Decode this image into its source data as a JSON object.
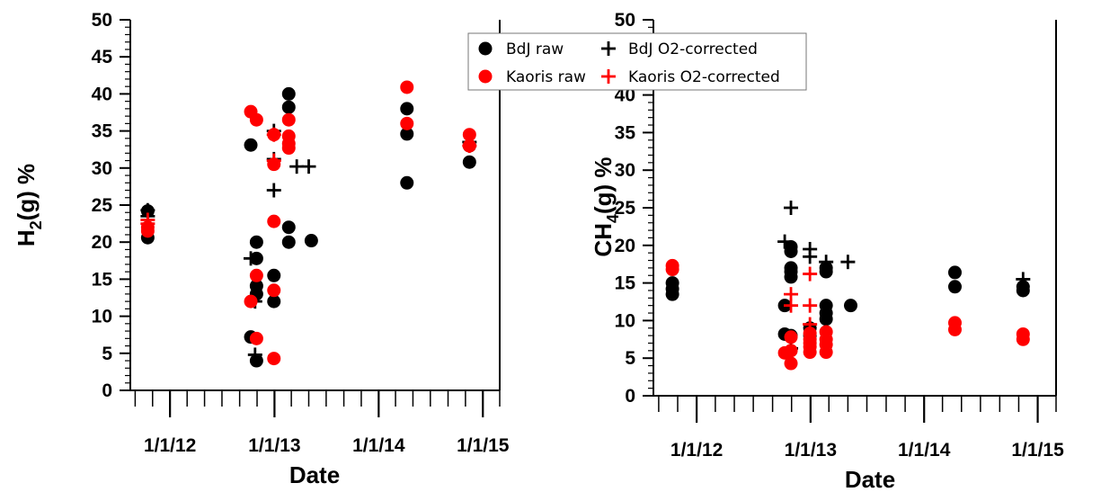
{
  "legend": {
    "items": [
      {
        "label": "BdJ raw",
        "marker": "circle",
        "color": "#000000"
      },
      {
        "label": "BdJ O2-corrected",
        "marker": "plus",
        "color": "#000000"
      },
      {
        "label": "Kaoris raw",
        "marker": "circle",
        "color": "#ff0000"
      },
      {
        "label": "Kaoris O2-corrected",
        "marker": "plus",
        "color": "#ff0000"
      }
    ]
  },
  "chart_data": [
    {
      "type": "scatter",
      "id": "h2",
      "ylabel": "H₂(g) %",
      "ylabel_parts": {
        "base": "H",
        "sub": "2",
        "rest": "(g) %"
      },
      "xlabel": "Date",
      "ylim": [
        0,
        50
      ],
      "yticks": [
        0,
        5,
        10,
        15,
        20,
        25,
        30,
        35,
        40,
        45,
        50
      ],
      "xlim": [
        "2011-08-15",
        "2015-03-01"
      ],
      "xticks": [
        {
          "date": "2012-01-01",
          "label": "1/1/12"
        },
        {
          "date": "2013-01-01",
          "label": "1/1/13"
        },
        {
          "date": "2014-01-01",
          "label": "1/1/14"
        },
        {
          "date": "2015-01-01",
          "label": "1/1/15"
        }
      ],
      "series": [
        {
          "name": "BdJ raw",
          "marker": "circle",
          "color": "#000000",
          "points": [
            {
              "x": "2011-10-15",
              "y": 20.6
            },
            {
              "x": "2011-10-15",
              "y": 24.2
            },
            {
              "x": "2012-10-10",
              "y": 33.1
            },
            {
              "x": "2012-10-10",
              "y": 7.2
            },
            {
              "x": "2012-10-30",
              "y": 20.0
            },
            {
              "x": "2012-10-30",
              "y": 17.8
            },
            {
              "x": "2012-10-30",
              "y": 14.1
            },
            {
              "x": "2012-10-30",
              "y": 13.0
            },
            {
              "x": "2012-10-30",
              "y": 4.0
            },
            {
              "x": "2012-12-30",
              "y": 15.5
            },
            {
              "x": "2012-12-30",
              "y": 12.0
            },
            {
              "x": "2013-02-20",
              "y": 40.0
            },
            {
              "x": "2013-02-20",
              "y": 38.2
            },
            {
              "x": "2013-02-20",
              "y": 22.0
            },
            {
              "x": "2013-02-20",
              "y": 20.0
            },
            {
              "x": "2013-05-10",
              "y": 20.2
            },
            {
              "x": "2014-04-10",
              "y": 38.0
            },
            {
              "x": "2014-04-10",
              "y": 34.6
            },
            {
              "x": "2014-04-10",
              "y": 28.0
            },
            {
              "x": "2014-11-15",
              "y": 33.0
            },
            {
              "x": "2014-11-15",
              "y": 30.8
            }
          ]
        },
        {
          "name": "BdJ O2-corrected",
          "marker": "plus",
          "color": "#000000",
          "points": [
            {
              "x": "2011-10-15",
              "y": 23.5
            },
            {
              "x": "2011-10-15",
              "y": 24.3
            },
            {
              "x": "2012-10-10",
              "y": 17.8
            },
            {
              "x": "2012-10-25",
              "y": 12.0
            },
            {
              "x": "2012-10-25",
              "y": 4.8
            },
            {
              "x": "2012-12-30",
              "y": 35.0
            },
            {
              "x": "2012-12-30",
              "y": 31.2
            },
            {
              "x": "2012-12-30",
              "y": 27.0
            },
            {
              "x": "2013-03-20",
              "y": 30.2
            },
            {
              "x": "2013-05-01",
              "y": 30.2
            },
            {
              "x": "2014-11-15",
              "y": 33.5
            }
          ]
        },
        {
          "name": "Kaoris raw",
          "marker": "circle",
          "color": "#ff0000",
          "points": [
            {
              "x": "2011-10-15",
              "y": 22.0
            },
            {
              "x": "2011-10-15",
              "y": 21.5
            },
            {
              "x": "2012-10-10",
              "y": 37.6
            },
            {
              "x": "2012-10-30",
              "y": 36.5
            },
            {
              "x": "2012-10-10",
              "y": 12.0
            },
            {
              "x": "2012-10-30",
              "y": 15.5
            },
            {
              "x": "2012-10-30",
              "y": 7.0
            },
            {
              "x": "2012-12-30",
              "y": 34.5
            },
            {
              "x": "2012-12-30",
              "y": 30.5
            },
            {
              "x": "2012-12-30",
              "y": 22.8
            },
            {
              "x": "2012-12-30",
              "y": 13.5
            },
            {
              "x": "2012-12-30",
              "y": 4.3
            },
            {
              "x": "2013-02-20",
              "y": 36.5
            },
            {
              "x": "2013-02-20",
              "y": 34.3
            },
            {
              "x": "2013-02-20",
              "y": 33.3
            },
            {
              "x": "2013-02-20",
              "y": 32.7
            },
            {
              "x": "2014-04-10",
              "y": 40.9
            },
            {
              "x": "2014-04-10",
              "y": 36.0
            },
            {
              "x": "2014-11-15",
              "y": 34.5
            },
            {
              "x": "2014-11-15",
              "y": 33.0
            }
          ]
        },
        {
          "name": "Kaoris O2-corrected",
          "marker": "plus",
          "color": "#ff0000",
          "points": [
            {
              "x": "2011-10-15",
              "y": 23.0
            },
            {
              "x": "2011-10-15",
              "y": 22.5
            },
            {
              "x": "2012-12-30",
              "y": 34.5
            },
            {
              "x": "2012-12-30",
              "y": 31.0
            },
            {
              "x": "2014-11-15",
              "y": 33.0
            }
          ]
        }
      ]
    },
    {
      "type": "scatter",
      "id": "ch4",
      "ylabel": "CH₄(g) %",
      "ylabel_parts": {
        "base": "CH",
        "sub": "4",
        "rest": "(g) %"
      },
      "xlabel": "Date",
      "ylim": [
        0,
        50
      ],
      "yticks": [
        0,
        5,
        10,
        15,
        20,
        25,
        30,
        35,
        40,
        45,
        50
      ],
      "xlim": [
        "2011-08-15",
        "2015-03-01"
      ],
      "xticks": [
        {
          "date": "2012-01-01",
          "label": "1/1/12"
        },
        {
          "date": "2013-01-01",
          "label": "1/1/13"
        },
        {
          "date": "2014-01-01",
          "label": "1/1/14"
        },
        {
          "date": "2015-01-01",
          "label": "1/1/15"
        }
      ],
      "series": [
        {
          "name": "BdJ raw",
          "marker": "circle",
          "color": "#000000",
          "points": [
            {
              "x": "2011-10-15",
              "y": 15.0
            },
            {
              "x": "2011-10-15",
              "y": 14.2
            },
            {
              "x": "2011-10-15",
              "y": 13.5
            },
            {
              "x": "2012-10-10",
              "y": 12.0
            },
            {
              "x": "2012-10-10",
              "y": 8.2
            },
            {
              "x": "2012-10-30",
              "y": 19.8
            },
            {
              "x": "2012-10-30",
              "y": 19.2
            },
            {
              "x": "2012-10-30",
              "y": 17.0
            },
            {
              "x": "2012-10-30",
              "y": 16.5
            },
            {
              "x": "2012-10-30",
              "y": 15.8
            },
            {
              "x": "2012-10-30",
              "y": 8.0
            },
            {
              "x": "2012-12-30",
              "y": 9.0
            },
            {
              "x": "2012-12-30",
              "y": 8.0
            },
            {
              "x": "2013-02-20",
              "y": 17.0
            },
            {
              "x": "2013-02-20",
              "y": 16.5
            },
            {
              "x": "2013-02-20",
              "y": 12.0
            },
            {
              "x": "2013-02-20",
              "y": 11.0
            },
            {
              "x": "2013-02-20",
              "y": 10.2
            },
            {
              "x": "2013-05-10",
              "y": 12.0
            },
            {
              "x": "2014-04-10",
              "y": 16.4
            },
            {
              "x": "2014-04-10",
              "y": 14.5
            },
            {
              "x": "2014-11-15",
              "y": 14.5
            },
            {
              "x": "2014-11-15",
              "y": 14.0
            }
          ]
        },
        {
          "name": "BdJ O2-corrected",
          "marker": "plus",
          "color": "#000000",
          "points": [
            {
              "x": "2012-10-10",
              "y": 20.5
            },
            {
              "x": "2012-10-30",
              "y": 25.0
            },
            {
              "x": "2012-10-30",
              "y": 6.3
            },
            {
              "x": "2012-12-30",
              "y": 19.5
            },
            {
              "x": "2012-12-30",
              "y": 18.5
            },
            {
              "x": "2013-02-20",
              "y": 17.8
            },
            {
              "x": "2013-05-01",
              "y": 17.8
            },
            {
              "x": "2014-11-15",
              "y": 15.5
            }
          ]
        },
        {
          "name": "Kaoris raw",
          "marker": "circle",
          "color": "#ff0000",
          "points": [
            {
              "x": "2011-10-15",
              "y": 17.3
            },
            {
              "x": "2011-10-15",
              "y": 16.8
            },
            {
              "x": "2012-10-10",
              "y": 5.7
            },
            {
              "x": "2012-10-30",
              "y": 7.8
            },
            {
              "x": "2012-10-30",
              "y": 6.0
            },
            {
              "x": "2012-10-30",
              "y": 4.3
            },
            {
              "x": "2012-12-30",
              "y": 8.3
            },
            {
              "x": "2012-12-30",
              "y": 7.5
            },
            {
              "x": "2012-12-30",
              "y": 7.0
            },
            {
              "x": "2012-12-30",
              "y": 6.5
            },
            {
              "x": "2012-12-30",
              "y": 5.8
            },
            {
              "x": "2013-02-20",
              "y": 8.5
            },
            {
              "x": "2013-02-20",
              "y": 7.5
            },
            {
              "x": "2013-02-20",
              "y": 6.8
            },
            {
              "x": "2013-02-20",
              "y": 5.8
            },
            {
              "x": "2014-04-10",
              "y": 9.7
            },
            {
              "x": "2014-04-10",
              "y": 8.8
            },
            {
              "x": "2014-11-15",
              "y": 8.2
            },
            {
              "x": "2014-11-15",
              "y": 7.5
            }
          ]
        },
        {
          "name": "Kaoris O2-corrected",
          "marker": "plus",
          "color": "#ff0000",
          "points": [
            {
              "x": "2012-10-30",
              "y": 13.5
            },
            {
              "x": "2012-10-30",
              "y": 12.0
            },
            {
              "x": "2012-12-30",
              "y": 16.2
            },
            {
              "x": "2012-12-30",
              "y": 12.0
            },
            {
              "x": "2012-12-30",
              "y": 9.5
            }
          ]
        }
      ]
    }
  ]
}
